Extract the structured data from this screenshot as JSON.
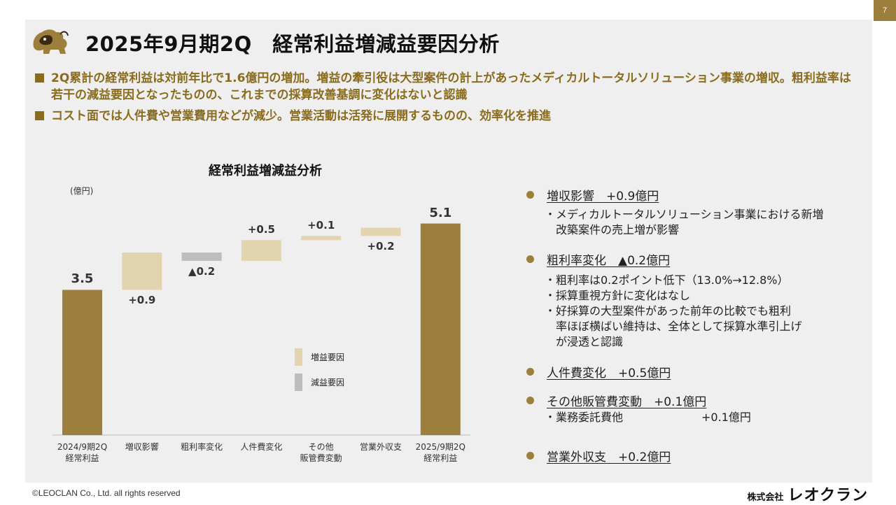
{
  "page_number": "7",
  "title": "2025年9月期2Q　経常利益増減益要因分析",
  "bullets": [
    "2Q累計の経常利益は対前年比で1.6億円の増加。増益の牽引役は大型案件の計上があったメディカルトータルソリューション事業の増収。粗利益率は若干の減益要因となったものの、これまでの採算改善基調に変化はないと認識",
    "コスト面では人件費や営業費用などが減少。営業活動は活発に展開するものの、効率化を推進"
  ],
  "chart_data": {
    "type": "bar",
    "subtype": "waterfall",
    "title": "経常利益増減益分析",
    "unit_label": "(億円)",
    "categories": [
      "2024/9期2Q\n経常利益",
      "増収影響",
      "粗利率変化",
      "人件費変化",
      "その他\n販管費変動",
      "営業外収支",
      "2025/9期2Q\n経常利益"
    ],
    "steps": [
      {
        "kind": "total",
        "value": 3.5,
        "label": "3.5"
      },
      {
        "kind": "increase",
        "value": 0.9,
        "label": "+0.9"
      },
      {
        "kind": "decrease",
        "value": -0.2,
        "label": "▲0.2"
      },
      {
        "kind": "increase",
        "value": 0.5,
        "label": "+0.5"
      },
      {
        "kind": "increase",
        "value": 0.1,
        "label": "+0.1"
      },
      {
        "kind": "increase",
        "value": 0.2,
        "label": "+0.2"
      },
      {
        "kind": "total",
        "value": 5.1,
        "label": "5.1"
      }
    ],
    "legend": [
      {
        "name": "増益要因",
        "color": "#e3d4b0"
      },
      {
        "name": "減益要因",
        "color": "#bdbdbd"
      }
    ],
    "colors": {
      "total": "#9c7f3d",
      "increase": "#e3d4b0",
      "decrease": "#bdbdbd"
    }
  },
  "factors": [
    {
      "title": "増収影響　+0.9億円",
      "details": "・メディカルトータルソリューション事業における新増\n　改築案件の売上増が影響"
    },
    {
      "title": "粗利率変化　▲0.2億円",
      "details": "・粗利率は0.2ポイント低下（13.0%→12.8%）\n・採算重視方針に変化はなし\n・好採算の大型案件があった前年の比較でも粗利\n　率ほぼ横ばい維持は、全体として採算水準引上げ\n　が浸透と認識"
    },
    {
      "title": "人件費変化　+0.5億円",
      "details": ""
    },
    {
      "title": "その他販管費変動　+0.1億円",
      "details": "・業務委託費他　　　　　　　+0.1億円"
    },
    {
      "title": "営業外収支　+0.2億円",
      "details": ""
    }
  ],
  "footer": {
    "copyright": "©LEOCLAN Co., Ltd. all rights reserved",
    "company_prefix": "株式会社",
    "company_name": "レオクラン"
  }
}
